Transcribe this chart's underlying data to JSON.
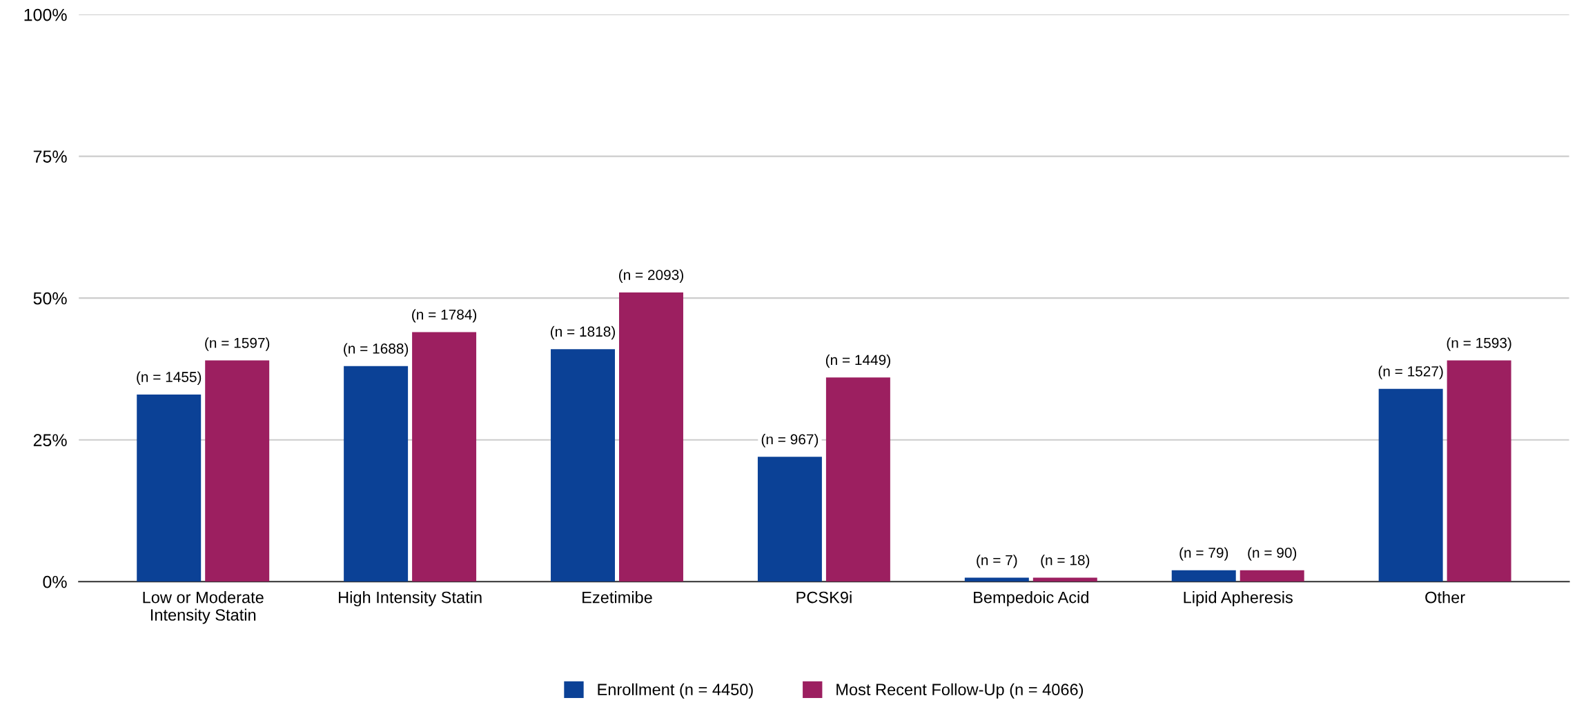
{
  "chart_data": {
    "type": "bar",
    "categories": [
      "Low or Moderate\nIntensity Statin",
      "High Intensity Statin",
      "Ezetimibe",
      "PCSK9i",
      "Bempedoic Acid",
      "Lipid Apheresis",
      "Other"
    ],
    "series": [
      {
        "name": "Enrollment (n = 4450)",
        "color": "#0b4196",
        "values": [
          33,
          38,
          41,
          22,
          0.7,
          2,
          34
        ]
      },
      {
        "name": "Most Recent Follow-Up (n = 4066)",
        "color": "#9c1f60",
        "values": [
          39,
          44,
          51,
          36,
          0.7,
          2,
          39
        ]
      }
    ],
    "annotations": [
      {
        "text": "(n = 1455)",
        "x": "Low or Moderate\nIntensity Statin",
        "y": 33
      },
      {
        "text": "(n = 1597)",
        "x": "Low or Moderate\nIntensity Statin",
        "y": 39
      },
      {
        "text": "(n = 1688)",
        "x": "High Intensity Statin",
        "y": 38
      },
      {
        "text": "(n = 1784)",
        "x": "High Intensity Statin",
        "y": 44
      },
      {
        "text": "(n = 1818)",
        "x": "Ezetimibe",
        "y": 41
      },
      {
        "text": "(n = 2093)",
        "x": "Ezetimibe",
        "y": 51
      },
      {
        "text": "(n = 967)",
        "x": "PCSK9i",
        "y": 22
      },
      {
        "text": "(n = 1449)",
        "x": "PCSK9i",
        "y": 36
      },
      {
        "text": "(n = 7)",
        "x": "Bempedoic Acid",
        "y": 0.7
      },
      {
        "text": "(n = 18)",
        "x": "Bempedoic Acid",
        "y": 0.7
      },
      {
        "text": "(n = 79)",
        "x": "Lipid Apheresis",
        "y": 2
      },
      {
        "text": "(n = 90)",
        "x": "Lipid Apheresis",
        "y": 2
      },
      {
        "text": "(n = 1527)",
        "x": "Other",
        "y": 34
      },
      {
        "text": "(n = 1593)",
        "x": "Other",
        "y": 39
      }
    ],
    "ylim": [
      0,
      100
    ],
    "yticks": [
      {
        "value": 0,
        "label": "0%"
      },
      {
        "value": 25,
        "label": "25%"
      },
      {
        "value": 50,
        "label": "50%"
      },
      {
        "value": 75,
        "label": "75%"
      },
      {
        "value": 100,
        "label": "100%"
      }
    ],
    "grid": "y",
    "legend": "bottom"
  }
}
